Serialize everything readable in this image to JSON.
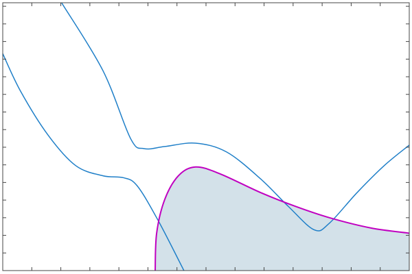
{
  "chart_data": {
    "type": "line",
    "title": "",
    "xlabel": "",
    "ylabel": "",
    "xlim": [
      0,
      14
    ],
    "ylim": [
      0,
      15.2
    ],
    "xticks": [
      0,
      1,
      2,
      3,
      4,
      5,
      6,
      7,
      8,
      9,
      10,
      11,
      12,
      13,
      14
    ],
    "yticks": [
      0,
      1,
      2,
      3,
      4,
      5,
      6,
      7,
      8,
      9,
      10,
      11,
      12,
      13,
      14,
      15
    ],
    "tick_labels_shown": false,
    "grid": false,
    "series": [
      {
        "color": "#1f7fc8",
        "x": [
          2.03,
          3.45,
          4.4,
          4.87,
          5.58,
          6.64,
          7.71,
          8.89,
          9.83,
          10.73,
          11.25,
          12.2,
          13.14,
          14.0
        ],
        "y": [
          15.19,
          11.35,
          7.5,
          6.92,
          7.04,
          7.23,
          6.73,
          5.19,
          3.65,
          2.31,
          2.69,
          4.42,
          5.96,
          7.12
        ]
      },
      {
        "color": "#1f7fc8",
        "x": [
          0,
          0.61,
          1.56,
          2.51,
          3.45,
          4.16,
          4.63,
          5.34,
          6.24
        ],
        "y": [
          12.31,
          10.19,
          7.69,
          5.96,
          5.38,
          5.27,
          4.81,
          2.88,
          0
        ]
      },
      {
        "color": "#c000c0",
        "fill": "#d3e1e9",
        "x": [
          5.25,
          5.3,
          5.58,
          6.05,
          6.64,
          7.47,
          8.89,
          10.07,
          11.25,
          12.67,
          14.0
        ],
        "y": [
          0,
          2.12,
          4.04,
          5.38,
          5.88,
          5.5,
          4.42,
          3.65,
          3.0,
          2.42,
          2.12
        ]
      }
    ]
  }
}
